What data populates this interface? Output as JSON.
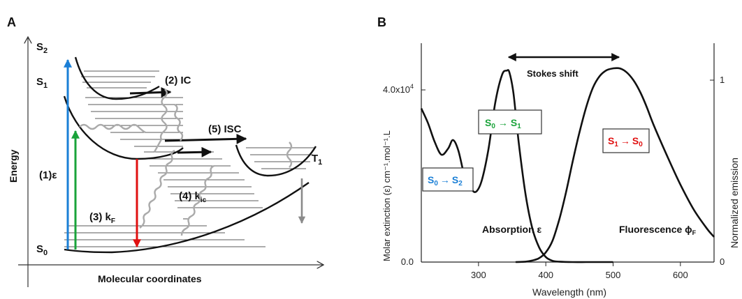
{
  "panel_a": {
    "panel_label": "A",
    "y_axis_label": "Energy",
    "x_axis_label": "Molecular coordinates",
    "state_labels": {
      "s2": {
        "base": "S",
        "sub": "2"
      },
      "s1": {
        "base": "S",
        "sub": "1"
      },
      "s0": {
        "base": "S",
        "sub": "0"
      },
      "t1": {
        "base": "T",
        "sub": "1"
      }
    },
    "process_labels": {
      "ic": "(2) IC",
      "isc": "(5) ISC",
      "absorption": "(1)ε",
      "kf_prefix": "(3) k",
      "kf_sub": "F",
      "kic_prefix": "(4) k",
      "kic_sub": "ic"
    },
    "arrow_colors": {
      "absorption_s2": "#1a7fd6",
      "absorption_s1": "#1aa33a",
      "fluorescence": "#e01010",
      "phosphorescence": "#8a8a8a",
      "vibrational": "#aaaaaa"
    }
  },
  "panel_b": {
    "panel_label": "B",
    "y_left_label": "Molar extinction (ε) cm⁻¹.mol⁻¹.L",
    "y_right_label": "Normalized emission",
    "x_axis_label": "Wavelength (nm)",
    "x_ticks": [
      "300",
      "400",
      "500",
      "600"
    ],
    "y_left_ticks": [
      "0.0",
      "4.0x10"
    ],
    "y_left_top_exp": "4",
    "y_right_ticks": [
      "0",
      "1"
    ],
    "annotation_stokes": "Stokes shift",
    "annotation_absorption": "Absorption ε",
    "annotation_fluorescence_prefix": "Fluorescence ϕ",
    "annotation_fluorescence_sub": "F",
    "box_s0s2": {
      "from": "S",
      "from_sub": "0",
      "arrow": "→",
      "to": "S",
      "to_sub": "2",
      "color": "#1a7fd6"
    },
    "box_s0s1": {
      "from": "S",
      "from_sub": "0",
      "arrow": "→",
      "to": "S",
      "to_sub": "1",
      "color": "#1aa33a"
    },
    "box_s1s0": {
      "from": "S",
      "from_sub": "1",
      "arrow": "→",
      "to": "S",
      "to_sub": "0",
      "color": "#e01010"
    }
  },
  "chart_data": {
    "type": "line",
    "xlabel": "Wavelength (nm)",
    "ylabel": "Molar extinction (ε) cm⁻¹.mol⁻¹.L",
    "y2label": "Normalized emission",
    "xlim": [
      215,
      650
    ],
    "ylim": [
      0,
      52000
    ],
    "y2lim": [
      0,
      1.13
    ],
    "series": [
      {
        "axis": "left",
        "x": [
          215,
          225,
          235,
          245,
          255,
          262,
          270,
          280,
          290,
          297,
          305,
          315,
          325,
          335,
          342,
          346,
          352,
          360,
          370,
          380,
          390,
          400,
          410,
          420,
          440,
          460,
          480,
          500
        ],
        "values": [
          36500,
          33000,
          28500,
          25500,
          27000,
          29000,
          26500,
          20000,
          17200,
          16800,
          19500,
          27000,
          38000,
          44500,
          45500,
          45000,
          40000,
          28000,
          16000,
          8000,
          3500,
          1200,
          300,
          100,
          0,
          0,
          0,
          0
        ]
      },
      {
        "axis": "right",
        "x": [
          355,
          370,
          380,
          390,
          400,
          410,
          420,
          430,
          440,
          450,
          460,
          470,
          480,
          490,
          500,
          510,
          520,
          530,
          540,
          550,
          560,
          580,
          600,
          620,
          640,
          650
        ],
        "values": [
          0.0,
          0.002,
          0.008,
          0.02,
          0.05,
          0.11,
          0.22,
          0.36,
          0.52,
          0.67,
          0.8,
          0.9,
          0.96,
          0.99,
          1.0,
          1.0,
          0.98,
          0.94,
          0.88,
          0.8,
          0.71,
          0.55,
          0.4,
          0.27,
          0.17,
          0.13
        ]
      }
    ]
  }
}
